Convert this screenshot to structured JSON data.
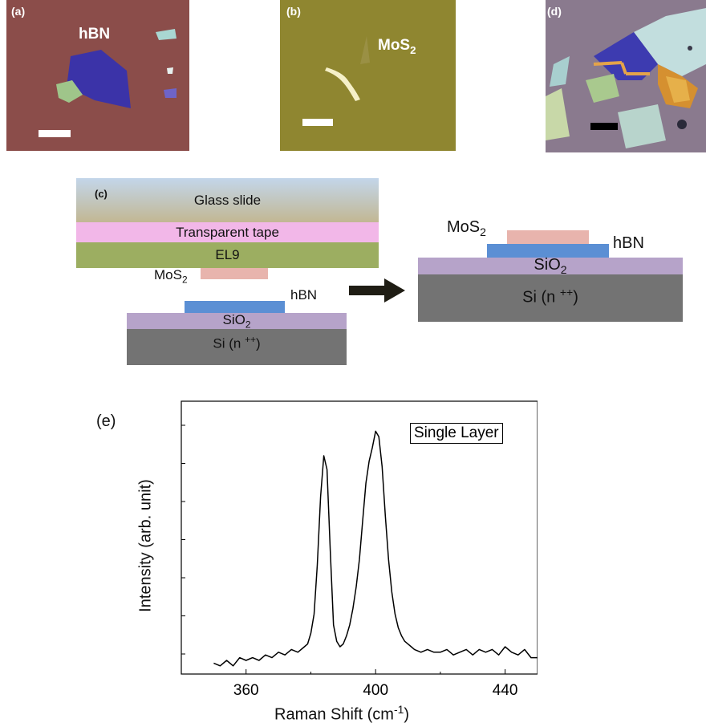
{
  "panels": {
    "a": {
      "tag": "(a)",
      "label": "hBN"
    },
    "b": {
      "tag": "(b)",
      "label": "MoS",
      "label_sub": "2"
    },
    "d": {
      "tag": "(d)"
    }
  },
  "schematic": {
    "tag": "(c)",
    "stamp": {
      "glass": "Glass slide",
      "tape": "Transparent tape",
      "el9": "EL9"
    },
    "before": {
      "mos2": "MoS",
      "mos2_sub": "2",
      "hbn": "hBN",
      "sio2": "SiO",
      "sio2_sub": "2",
      "si": "Si (n ",
      "si_sup": "++",
      "si_end": ")"
    },
    "after": {
      "mos2": "MoS",
      "mos2_sub": "2",
      "hbn": "hBN",
      "sio2": "SiO",
      "sio2_sub": "2",
      "si": "Si (n ",
      "si_sup": "++",
      "si_end": ")"
    },
    "colors": {
      "glass_top": "#c3d6ea",
      "glass_bottom": "#c2b793",
      "tape": "#f2b7e8",
      "el9": "#9cae61",
      "mos2": "#e8b4ad",
      "hbn": "#5b8fd4",
      "sio2": "#b6a3c9",
      "si": "#737373"
    }
  },
  "chart_data": {
    "type": "line",
    "tag": "(e)",
    "legend": "Single Layer",
    "xlabel": "Raman Shift (cm",
    "xlabel_sup": "-1",
    "xlabel_end": ")",
    "ylabel": "Intensity (arb. unit)",
    "xlim": [
      340,
      450
    ],
    "ylim": [
      0,
      1
    ],
    "xticks": [
      "360",
      "400",
      "440"
    ],
    "xtick_values": [
      360,
      400,
      440
    ],
    "series": [
      {
        "x": [
          350,
          352,
          354,
          356,
          358,
          360,
          362,
          364,
          366,
          368,
          370,
          372,
          374,
          376,
          378,
          379,
          380,
          381,
          382,
          383,
          384,
          385,
          386,
          387,
          388,
          389,
          390,
          391,
          392,
          393,
          394,
          395,
          396,
          397,
          398,
          399,
          400,
          401,
          402,
          403,
          404,
          405,
          406,
          407,
          408,
          409,
          410,
          411,
          412,
          414,
          416,
          418,
          420,
          422,
          424,
          426,
          428,
          430,
          432,
          434,
          436,
          438,
          440,
          442,
          444,
          446,
          448,
          450
        ],
        "y": [
          0.04,
          0.03,
          0.05,
          0.03,
          0.06,
          0.05,
          0.06,
          0.05,
          0.07,
          0.06,
          0.08,
          0.07,
          0.09,
          0.08,
          0.1,
          0.11,
          0.15,
          0.22,
          0.4,
          0.65,
          0.8,
          0.75,
          0.45,
          0.18,
          0.12,
          0.1,
          0.11,
          0.14,
          0.18,
          0.24,
          0.32,
          0.42,
          0.56,
          0.7,
          0.78,
          0.83,
          0.89,
          0.87,
          0.76,
          0.58,
          0.42,
          0.3,
          0.22,
          0.17,
          0.14,
          0.12,
          0.11,
          0.1,
          0.09,
          0.08,
          0.09,
          0.08,
          0.08,
          0.09,
          0.07,
          0.08,
          0.09,
          0.07,
          0.09,
          0.08,
          0.09,
          0.07,
          0.1,
          0.08,
          0.07,
          0.09,
          0.06,
          0.06
        ]
      }
    ]
  }
}
